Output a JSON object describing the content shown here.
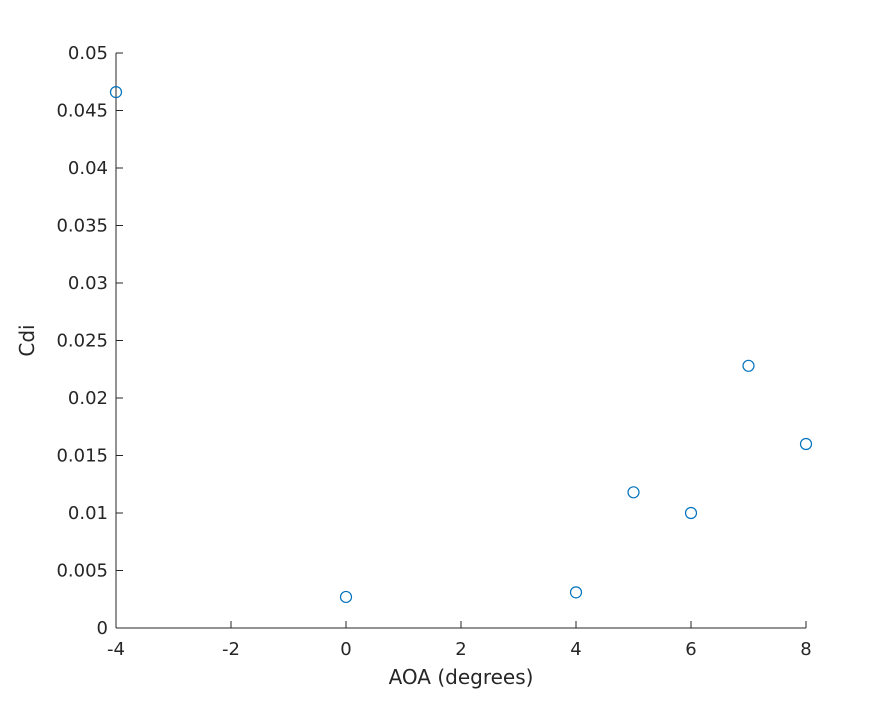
{
  "chart_data": {
    "type": "scatter",
    "title": "",
    "xlabel": "AOA (degrees)",
    "ylabel": "Cdi",
    "xlim": [
      -4,
      8
    ],
    "ylim": [
      0,
      0.05
    ],
    "xticks": [
      -4,
      -2,
      0,
      2,
      4,
      6,
      8
    ],
    "xtick_labels": [
      "-4",
      "-2",
      "0",
      "2",
      "4",
      "6",
      "8"
    ],
    "yticks": [
      0,
      0.005,
      0.01,
      0.015,
      0.02,
      0.025,
      0.03,
      0.035,
      0.04,
      0.045,
      0.05
    ],
    "ytick_labels": [
      "0",
      "0.005",
      "0.01",
      "0.015",
      "0.02",
      "0.025",
      "0.03",
      "0.035",
      "0.04",
      "0.045",
      "0.05"
    ],
    "grid": false,
    "marker": "circle-open",
    "color": "#0072BD",
    "points": [
      {
        "x": -4,
        "y": 0.0466
      },
      {
        "x": 0,
        "y": 0.0027
      },
      {
        "x": 4,
        "y": 0.0031
      },
      {
        "x": 5,
        "y": 0.0118
      },
      {
        "x": 6,
        "y": 0.01
      },
      {
        "x": 7,
        "y": 0.0228
      },
      {
        "x": 8,
        "y": 0.016
      }
    ]
  }
}
